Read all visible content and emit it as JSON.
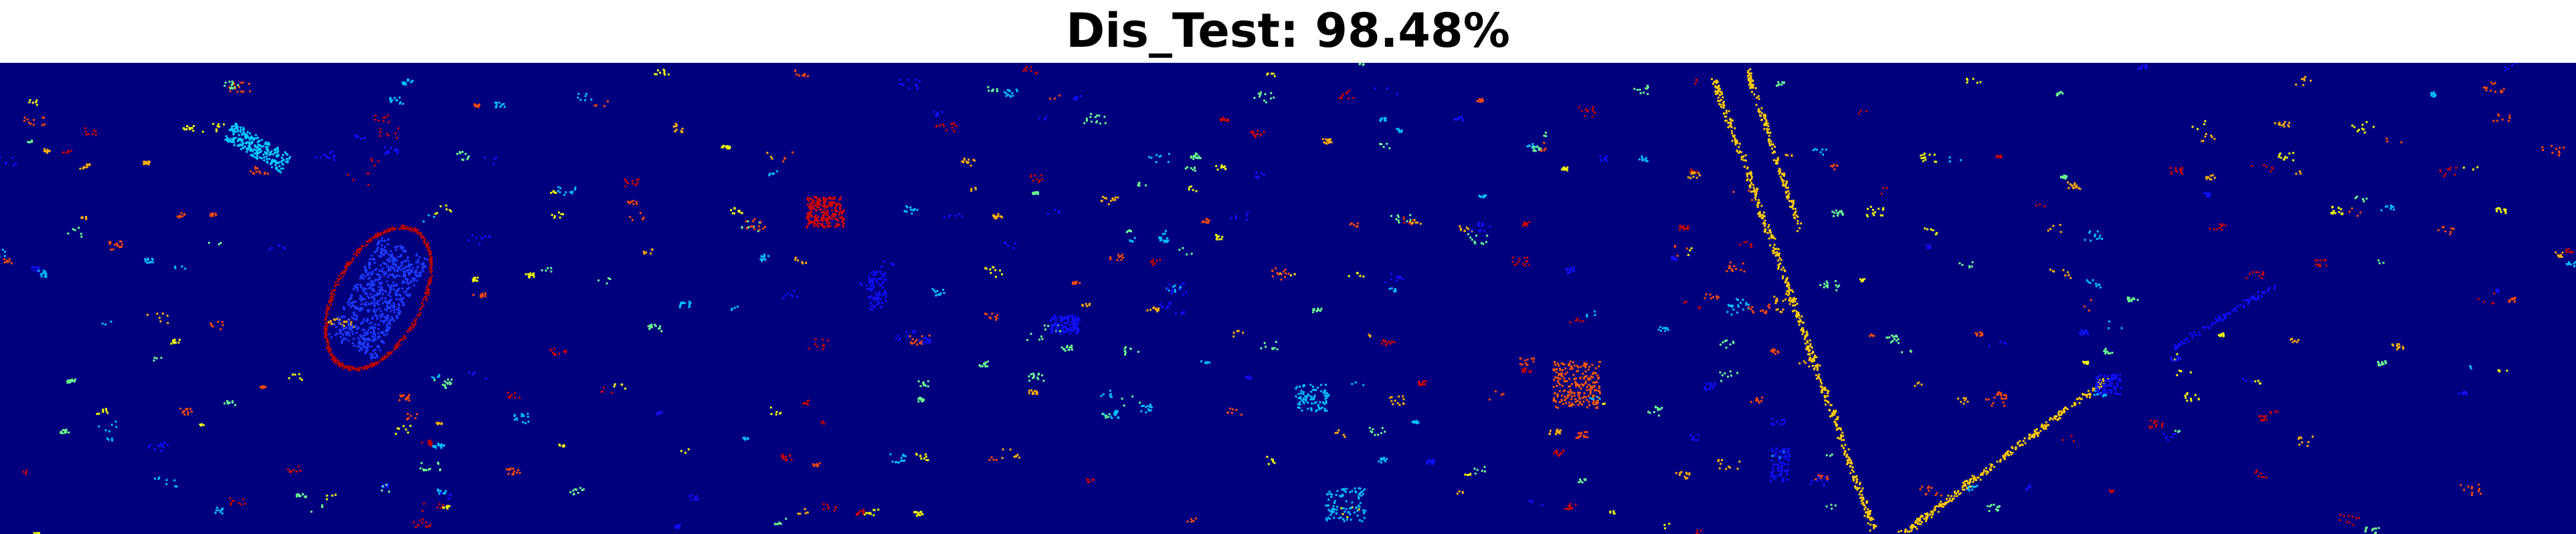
{
  "figure": {
    "title": "Dis_Test: 98.48%"
  },
  "classification_map": {
    "background_color": "#00007f",
    "palette": [
      "#1010ff",
      "#00bfff",
      "#6cff8c",
      "#f4ff00",
      "#ffb000",
      "#ff4a00",
      "#c80000"
    ],
    "features": {
      "stadium-ring": {
        "color": "#b40000"
      },
      "stadium-field": {
        "color": "#1e3cff"
      },
      "red-block": {
        "color": "#d00000"
      },
      "orange-cluster": {
        "color": "#ff5a00"
      },
      "road-diagonal": {
        "color": "#ffcc00"
      },
      "cyan-block": {
        "color": "#00cfff"
      }
    }
  }
}
